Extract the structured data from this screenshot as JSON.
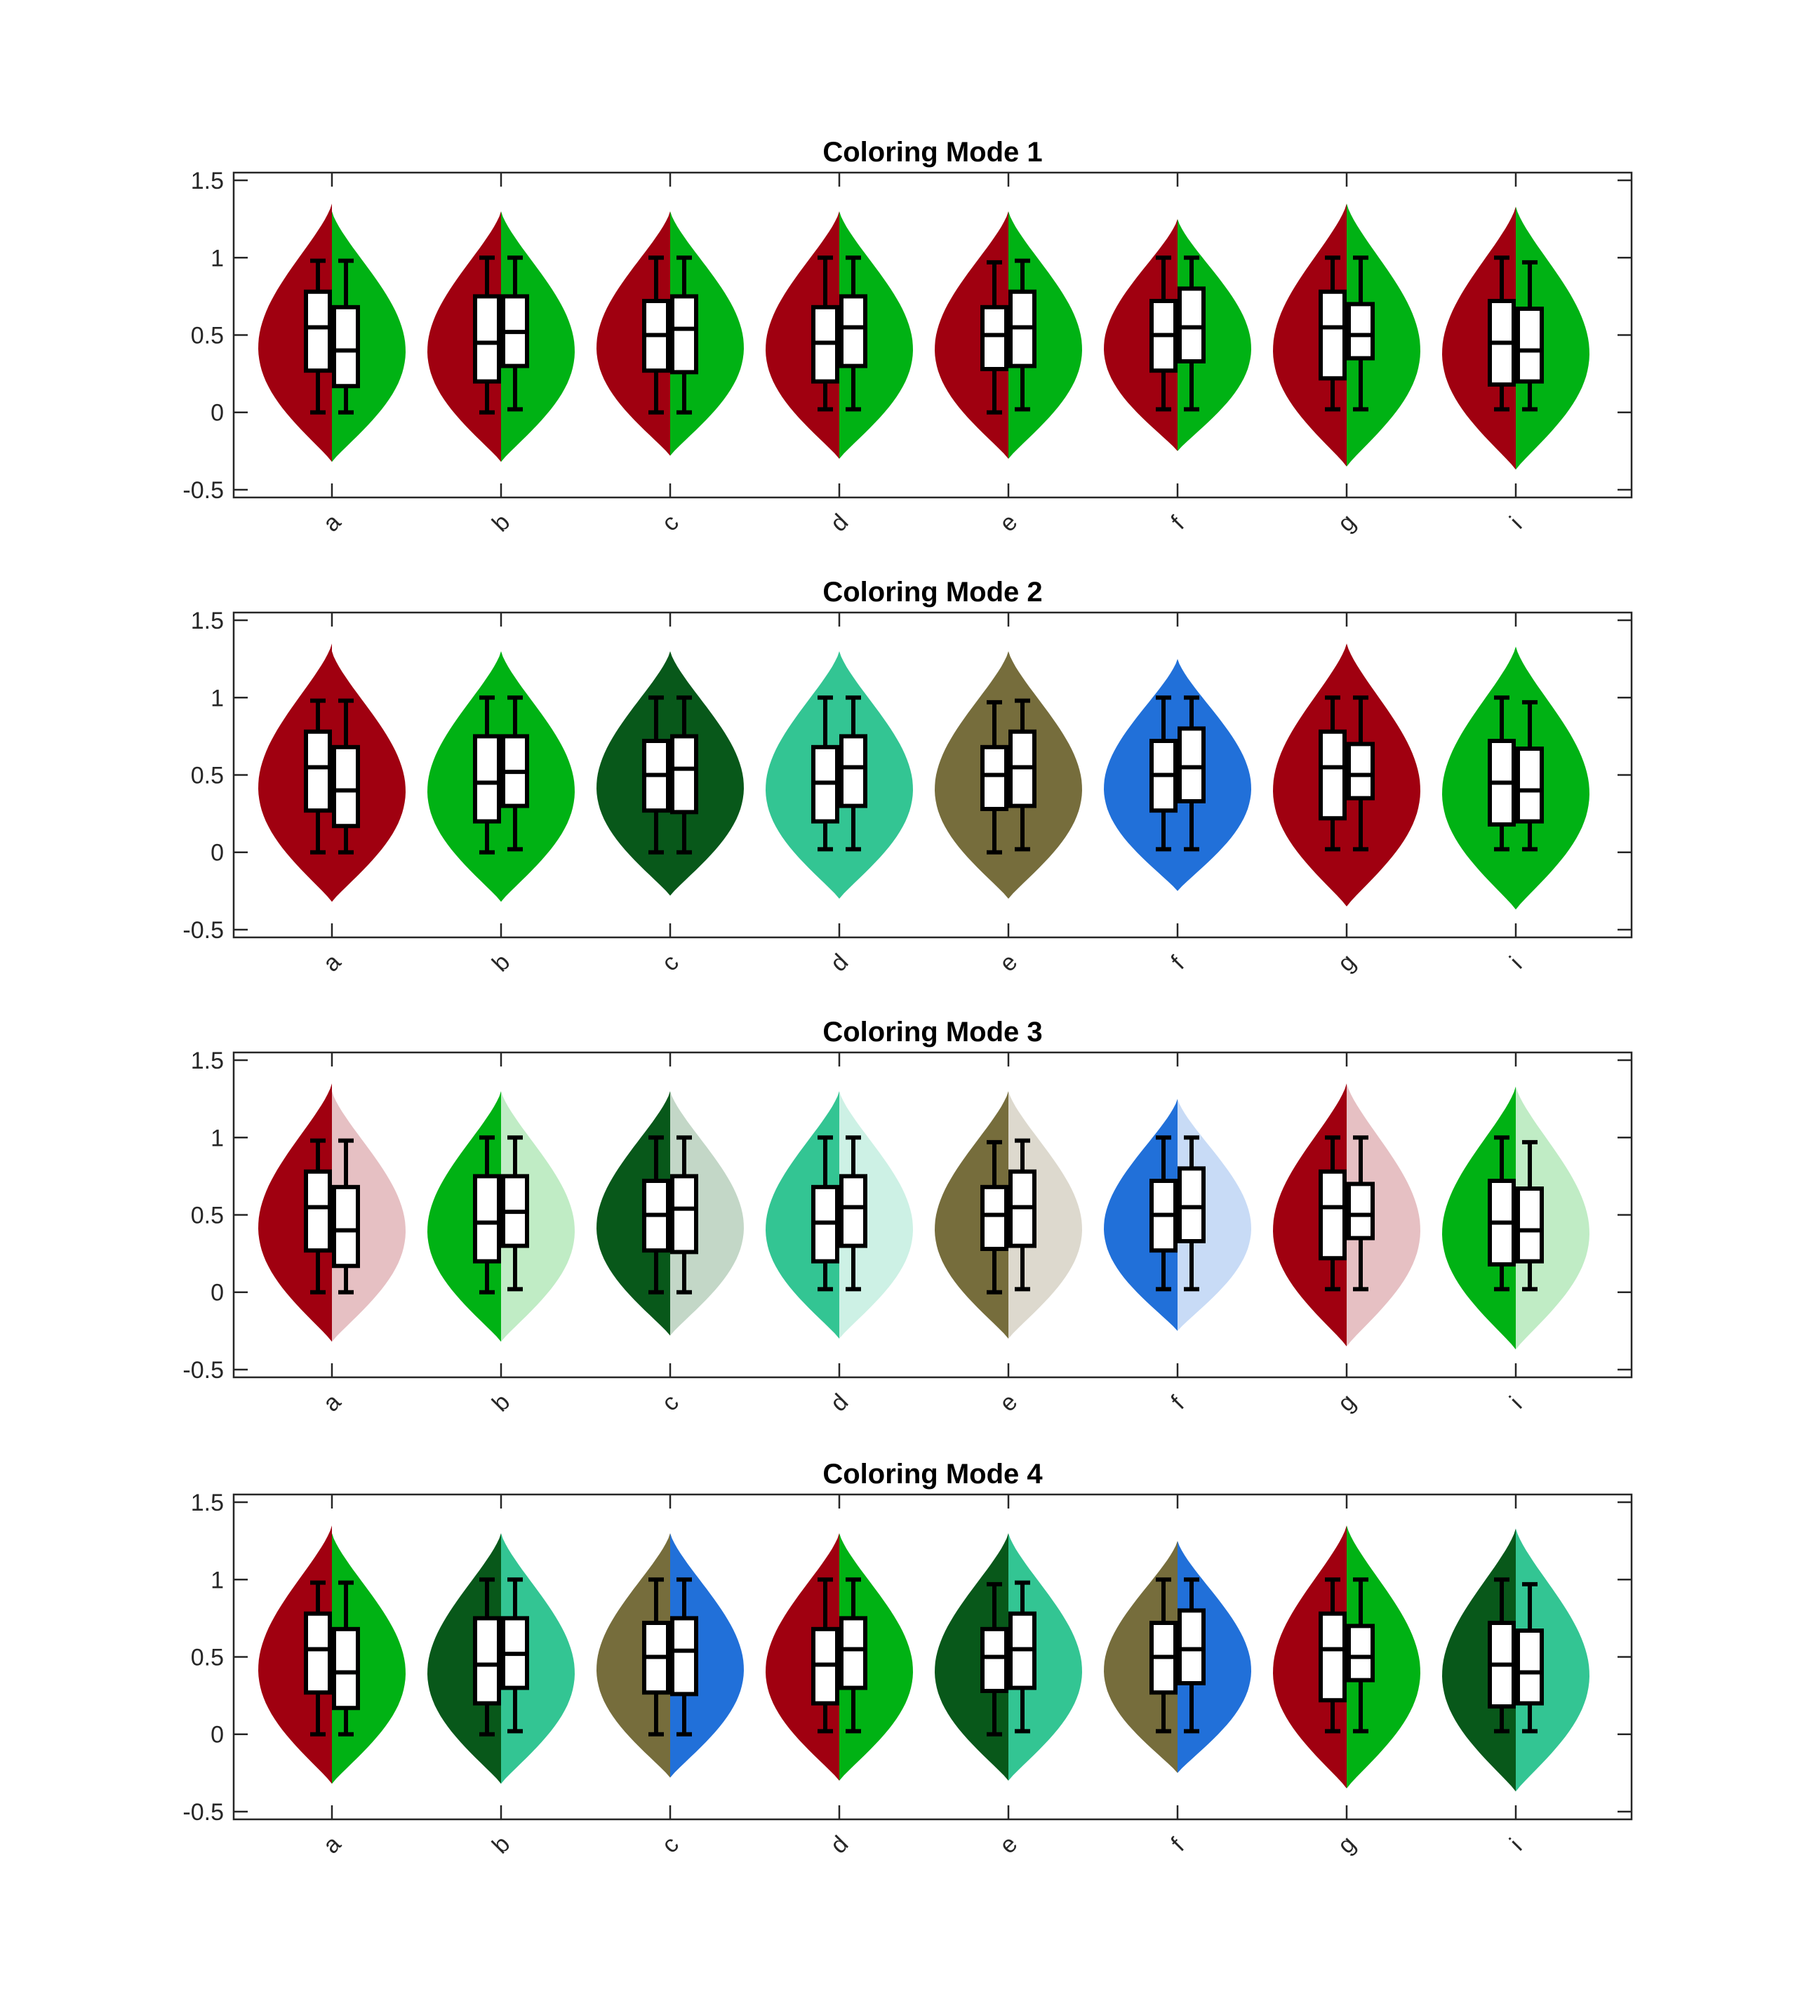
{
  "chart_data": [
    {
      "type": "violin",
      "title": "Coloring Mode 1",
      "categories": [
        "a",
        "b",
        "c",
        "d",
        "e",
        "f",
        "g",
        "i"
      ],
      "ylim": [
        -0.55,
        1.55
      ],
      "yticks": [
        -0.5,
        0,
        0.5,
        1,
        1.5
      ],
      "ytick_labels": [
        "-0.5",
        "0",
        "0.5",
        "1",
        "1.5"
      ],
      "xlabel": "",
      "ylabel": "",
      "grid": false,
      "legend": "none",
      "colors_left": [
        "#a00010",
        "#a00010",
        "#a00010",
        "#a00010",
        "#a00010",
        "#a00010",
        "#a00010",
        "#a00010"
      ],
      "colors_right": [
        "#00b214",
        "#00b214",
        "#00b214",
        "#00b214",
        "#00b214",
        "#00b214",
        "#00b214",
        "#00b214"
      ]
    },
    {
      "type": "violin",
      "title": "Coloring Mode 2",
      "categories": [
        "a",
        "b",
        "c",
        "d",
        "e",
        "f",
        "g",
        "i"
      ],
      "ylim": [
        -0.55,
        1.55
      ],
      "yticks": [
        -0.5,
        0,
        0.5,
        1,
        1.5
      ],
      "ytick_labels": [
        "-0.5",
        "0",
        "0.5",
        "1",
        "1.5"
      ],
      "xlabel": "",
      "ylabel": "",
      "grid": false,
      "legend": "none",
      "colors_left": [
        "#a00010",
        "#00b214",
        "#08581a",
        "#33c593",
        "#766d3c",
        "#2170d9",
        "#a00010",
        "#00b214"
      ],
      "colors_right": [
        "#a00010",
        "#00b214",
        "#08581a",
        "#33c593",
        "#766d3c",
        "#2170d9",
        "#a00010",
        "#00b214"
      ]
    },
    {
      "type": "violin",
      "title": "Coloring Mode 3",
      "categories": [
        "a",
        "b",
        "c",
        "d",
        "e",
        "f",
        "g",
        "i"
      ],
      "ylim": [
        -0.55,
        1.55
      ],
      "yticks": [
        -0.5,
        0,
        0.5,
        1,
        1.5
      ],
      "ytick_labels": [
        "-0.5",
        "0",
        "0.5",
        "1",
        "1.5"
      ],
      "xlabel": "",
      "ylabel": "",
      "grid": false,
      "legend": "none",
      "colors_left": [
        "#a00010",
        "#00b214",
        "#08581a",
        "#33c593",
        "#766d3c",
        "#2170d9",
        "#a00010",
        "#00b214"
      ],
      "colors_right": [
        "#e6c0c3",
        "#c0ecc5",
        "#c3d7c7",
        "#cdf1e5",
        "#ddd9ce",
        "#c8dbf6",
        "#e6c0c3",
        "#c0ecc5"
      ]
    },
    {
      "type": "violin",
      "title": "Coloring Mode 4",
      "categories": [
        "a",
        "b",
        "c",
        "d",
        "e",
        "f",
        "g",
        "i"
      ],
      "ylim": [
        -0.55,
        1.55
      ],
      "yticks": [
        -0.5,
        0,
        0.5,
        1,
        1.5
      ],
      "ytick_labels": [
        "-0.5",
        "0",
        "0.5",
        "1",
        "1.5"
      ],
      "xlabel": "",
      "ylabel": "",
      "grid": false,
      "legend": "none",
      "colors_left": [
        "#a00010",
        "#08581a",
        "#766d3c",
        "#a00010",
        "#08581a",
        "#766d3c",
        "#a00010",
        "#08581a"
      ],
      "colors_right": [
        "#00b214",
        "#33c593",
        "#2170d9",
        "#00b214",
        "#33c593",
        "#2170d9",
        "#00b214",
        "#33c593"
      ]
    }
  ],
  "groups": [
    {
      "left": {
        "min": 0,
        "q1": 0.27,
        "median": 0.55,
        "q3": 0.78,
        "max": 0.98,
        "range": [
          -0.32,
          1.35
        ]
      },
      "right": {
        "min": 0,
        "q1": 0.17,
        "median": 0.4,
        "q3": 0.68,
        "max": 0.98,
        "range": [
          -0.32,
          1.3
        ]
      }
    },
    {
      "left": {
        "min": 0,
        "q1": 0.2,
        "median": 0.45,
        "q3": 0.75,
        "max": 1.0,
        "range": [
          -0.32,
          1.3
        ]
      },
      "right": {
        "min": 0.02,
        "q1": 0.3,
        "median": 0.52,
        "q3": 0.75,
        "max": 1.0,
        "range": [
          -0.32,
          1.3
        ]
      }
    },
    {
      "left": {
        "min": 0,
        "q1": 0.27,
        "median": 0.5,
        "q3": 0.72,
        "max": 1.0,
        "range": [
          -0.28,
          1.3
        ]
      },
      "right": {
        "min": 0,
        "q1": 0.26,
        "median": 0.54,
        "q3": 0.75,
        "max": 1.0,
        "range": [
          -0.28,
          1.3
        ]
      }
    },
    {
      "left": {
        "min": 0.02,
        "q1": 0.2,
        "median": 0.45,
        "q3": 0.68,
        "max": 1.0,
        "range": [
          -0.3,
          1.3
        ]
      },
      "right": {
        "min": 0.02,
        "q1": 0.3,
        "median": 0.55,
        "q3": 0.75,
        "max": 1.0,
        "range": [
          -0.3,
          1.3
        ]
      }
    },
    {
      "left": {
        "min": 0,
        "q1": 0.28,
        "median": 0.5,
        "q3": 0.68,
        "max": 0.97,
        "range": [
          -0.3,
          1.3
        ]
      },
      "right": {
        "min": 0.02,
        "q1": 0.3,
        "median": 0.55,
        "q3": 0.78,
        "max": 0.98,
        "range": [
          -0.3,
          1.3
        ]
      }
    },
    {
      "left": {
        "min": 0.02,
        "q1": 0.27,
        "median": 0.5,
        "q3": 0.72,
        "max": 1.0,
        "range": [
          -0.25,
          1.25
        ]
      },
      "right": {
        "min": 0.02,
        "q1": 0.33,
        "median": 0.55,
        "q3": 0.8,
        "max": 1.0,
        "range": [
          -0.25,
          1.25
        ]
      }
    },
    {
      "left": {
        "min": 0.02,
        "q1": 0.22,
        "median": 0.55,
        "q3": 0.78,
        "max": 1.0,
        "range": [
          -0.35,
          1.35
        ]
      },
      "right": {
        "min": 0.02,
        "q1": 0.35,
        "median": 0.5,
        "q3": 0.7,
        "max": 1.0,
        "range": [
          -0.35,
          1.35
        ]
      }
    },
    {
      "left": {
        "min": 0.02,
        "q1": 0.18,
        "median": 0.45,
        "q3": 0.72,
        "max": 1.0,
        "range": [
          -0.37,
          1.33
        ]
      },
      "right": {
        "min": 0.02,
        "q1": 0.2,
        "median": 0.4,
        "q3": 0.67,
        "max": 0.97,
        "range": [
          -0.37,
          1.33
        ]
      }
    }
  ]
}
